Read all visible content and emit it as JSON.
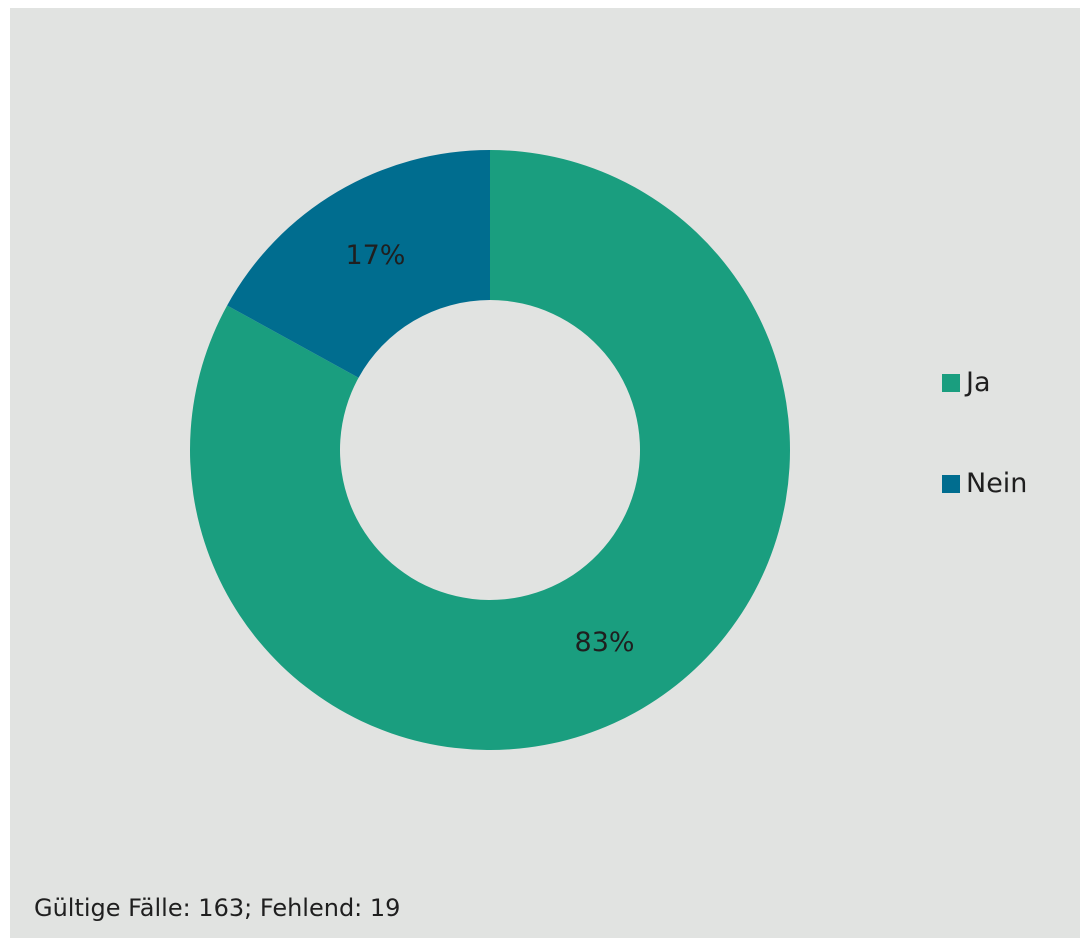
{
  "chart_data": {
    "type": "pie",
    "variant": "donut",
    "categories": [
      "Ja",
      "Nein"
    ],
    "values": [
      83,
      17
    ],
    "value_labels": [
      "83%",
      "17%"
    ],
    "colors": [
      "#1a9e7f",
      "#006d8f"
    ],
    "legend": {
      "position": "right",
      "entries": [
        "Ja",
        "Nein"
      ]
    },
    "title": ""
  },
  "footnote": "Gültige Fälle: 163; Fehlend: 19"
}
